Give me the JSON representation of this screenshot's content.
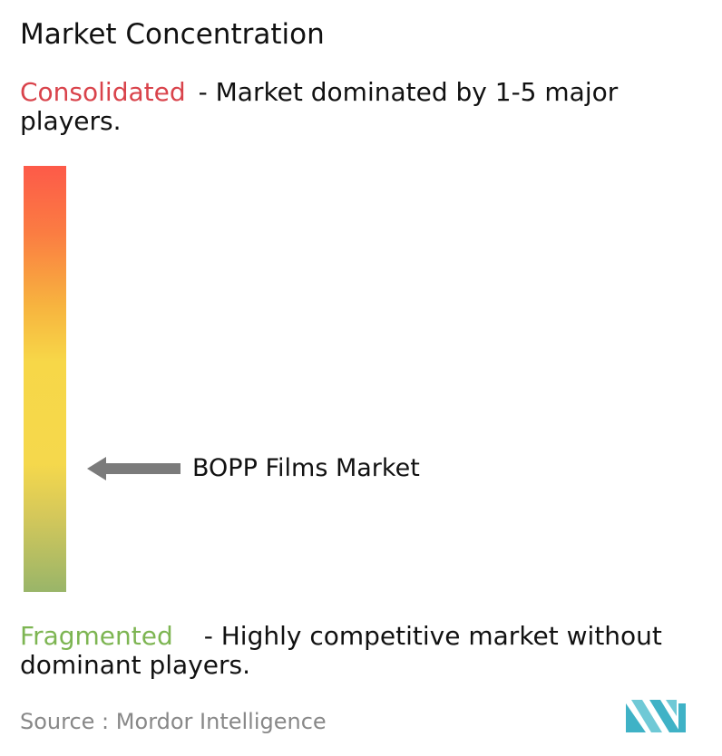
{
  "title": "Market Concentration",
  "consolidated": {
    "keyword": "Consolidated",
    "description": "- Market dominated by 1-5 major players.",
    "color": "#d9434b"
  },
  "fragmented": {
    "keyword": "Fragmented",
    "description": "- Highly competitive market without dominant players.",
    "color": "#7db552"
  },
  "scale": {
    "gradient_colors": [
      "#fd5a49",
      "#fb7d42",
      "#f7b43f",
      "#f7d748",
      "#f5d84c",
      "#d5c85a",
      "#99b569"
    ]
  },
  "marker": {
    "label": "BOPP Films Market",
    "arrow_color": "#7b7b7b"
  },
  "source": {
    "label": "Source :",
    "name": "Mordor Intelligence"
  },
  "logo": {
    "icon": "mordor-intelligence-logo-icon",
    "colors": [
      "#3fb2c6",
      "#6fc9d6"
    ]
  }
}
